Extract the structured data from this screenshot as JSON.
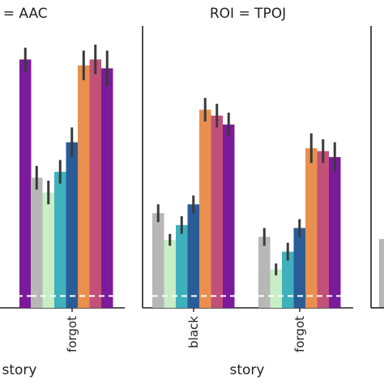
{
  "palette": [
    "#b7b7b7",
    "#c9eec6",
    "#3fb1bd",
    "#2a5d97",
    "#e9904f",
    "#c2517a",
    "#7b1b9b"
  ],
  "errorbar_color": "#3a3a3a",
  "baseline_color": "#ffffff",
  "chart_data": [
    {
      "type": "bar",
      "title": "I = AAC",
      "xlabel": "story",
      "categories": [
        "",
        "forgot"
      ],
      "ylim": [
        0,
        1
      ],
      "baseline": 0.04,
      "series": [
        {
          "values": [
            null,
            0.44
          ],
          "err": [
            null,
            0.04
          ]
        },
        {
          "values": [
            null,
            0.39
          ],
          "err": [
            null,
            0.04
          ]
        },
        {
          "values": [
            null,
            0.46
          ],
          "err": [
            null,
            0.04
          ]
        },
        {
          "values": [
            null,
            0.56
          ],
          "err": [
            null,
            0.05
          ]
        },
        {
          "values": [
            null,
            0.82
          ],
          "err": [
            null,
            0.05
          ]
        },
        {
          "values": [
            null,
            0.84
          ],
          "err": [
            null,
            0.05
          ]
        },
        {
          "values": [
            0.84,
            0.81
          ],
          "err": [
            0.04,
            0.06
          ]
        }
      ]
    },
    {
      "type": "bar",
      "title": "ROI = TPOJ",
      "xlabel": "story",
      "categories": [
        "black",
        "forgot"
      ],
      "ylim": [
        0,
        1
      ],
      "baseline": 0.04,
      "series": [
        {
          "values": [
            0.32,
            0.24
          ],
          "err": [
            0.03,
            0.03
          ]
        },
        {
          "values": [
            0.23,
            0.13
          ],
          "err": [
            0.02,
            0.02
          ]
        },
        {
          "values": [
            0.28,
            0.19
          ],
          "err": [
            0.03,
            0.03
          ]
        },
        {
          "values": [
            0.35,
            0.27
          ],
          "err": [
            0.03,
            0.03
          ]
        },
        {
          "values": [
            0.67,
            0.54
          ],
          "err": [
            0.04,
            0.05
          ]
        },
        {
          "values": [
            0.65,
            0.53
          ],
          "err": [
            0.04,
            0.04
          ]
        },
        {
          "values": [
            0.62,
            0.51
          ],
          "err": [
            0.04,
            0.05
          ]
        }
      ]
    }
  ]
}
